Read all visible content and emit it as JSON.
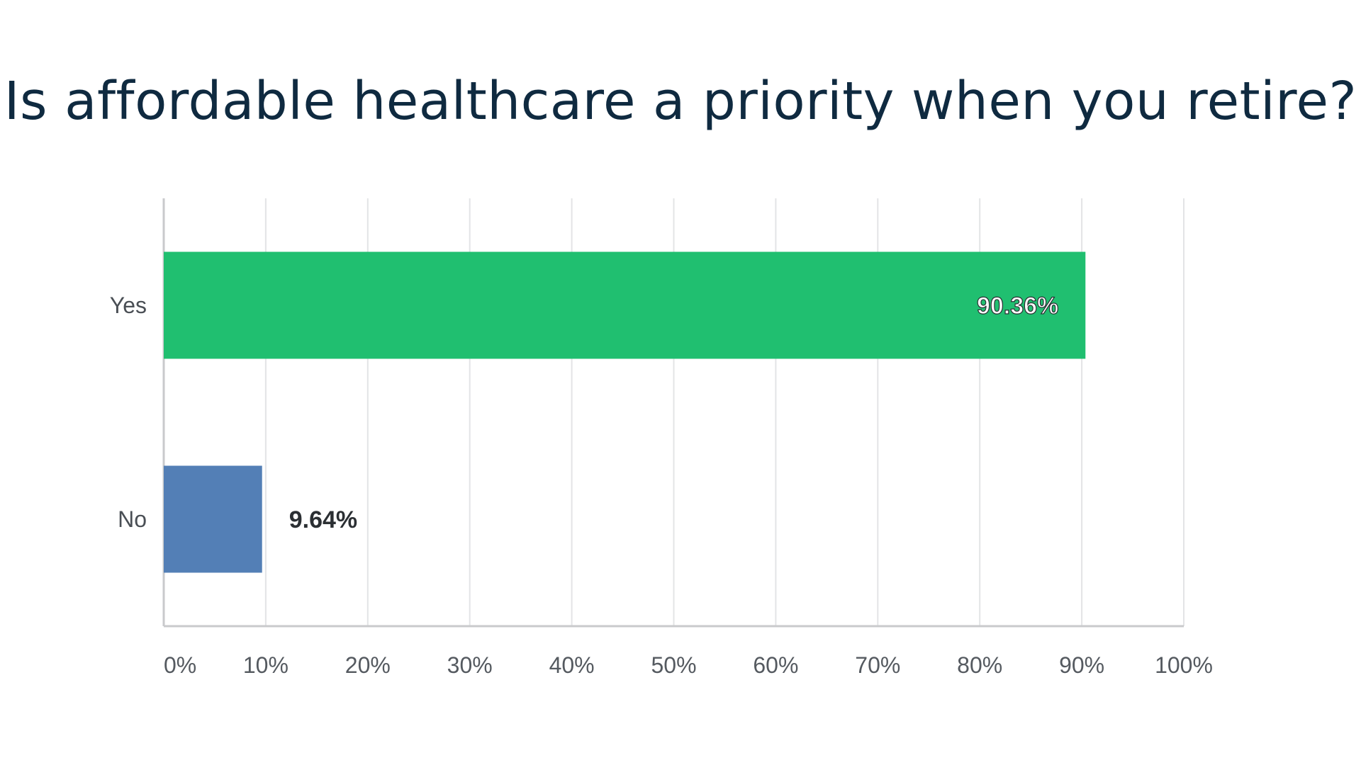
{
  "chart_data": {
    "type": "bar",
    "orientation": "horizontal",
    "title": "Is affordable healthcare a priority when you retire?",
    "categories": [
      "Yes",
      "No"
    ],
    "values": [
      90.36,
      9.64
    ],
    "value_labels": [
      "90.36%",
      "9.64%"
    ],
    "colors": [
      "#20bf70",
      "#537fb6"
    ],
    "xlim": [
      0,
      100
    ],
    "x_ticks": [
      0,
      10,
      20,
      30,
      40,
      50,
      60,
      70,
      80,
      90,
      100
    ],
    "x_tick_labels": [
      "0%",
      "10%",
      "20%",
      "30%",
      "40%",
      "50%",
      "60%",
      "70%",
      "80%",
      "90%",
      "100%"
    ],
    "grid": true,
    "legend": "none"
  }
}
